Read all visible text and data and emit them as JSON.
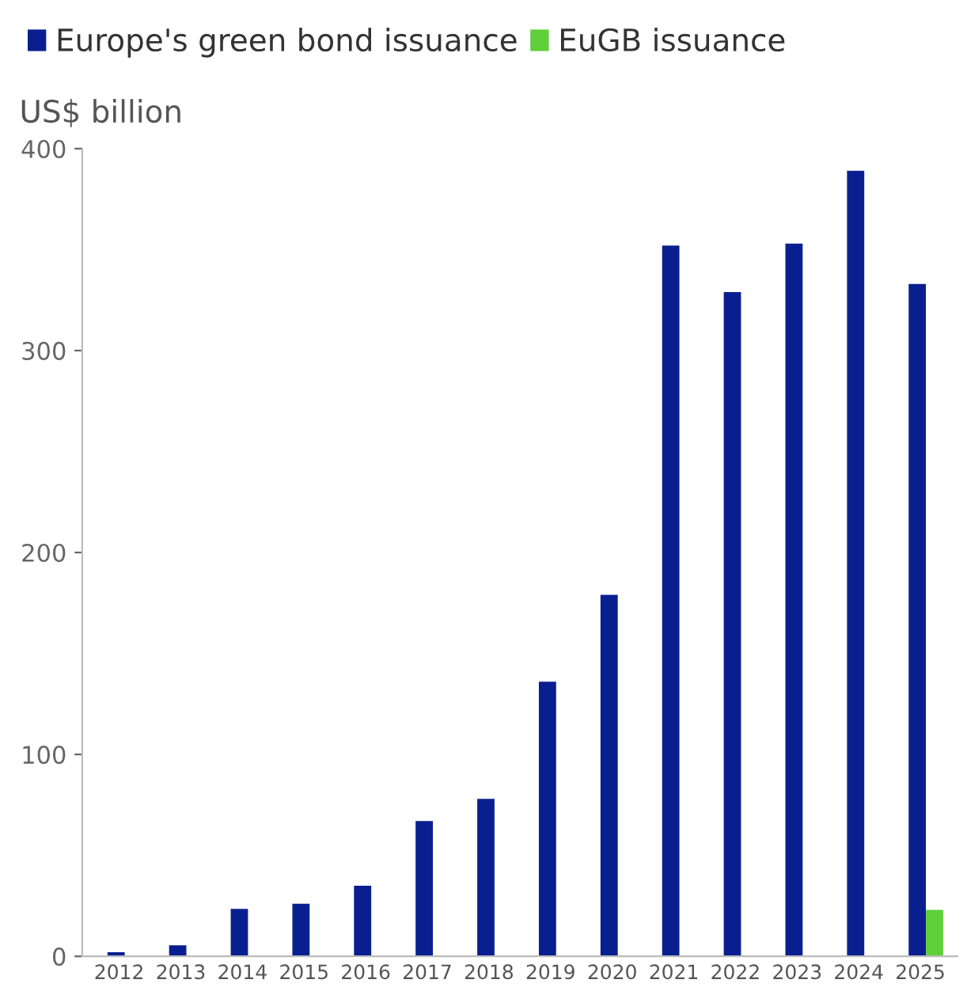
{
  "chart_data": {
    "type": "bar",
    "ylabel": "US$ billion",
    "categories": [
      "2012",
      "2013",
      "2014",
      "2015",
      "2016",
      "2017",
      "2018",
      "2019",
      "2020",
      "2021",
      "2022",
      "2023",
      "2024",
      "2025"
    ],
    "series": [
      {
        "name": "Europe's green bond issuance",
        "color": "#0a1f8f",
        "values": [
          2,
          5.5,
          23.5,
          26,
          35,
          67,
          78,
          136,
          179,
          352,
          329,
          353,
          389,
          333
        ]
      },
      {
        "name": "EuGB issuance",
        "color": "#5fcf3a",
        "values": [
          null,
          null,
          null,
          null,
          null,
          null,
          null,
          null,
          null,
          null,
          null,
          null,
          null,
          23
        ]
      }
    ],
    "ylim": [
      0,
      400
    ],
    "yticks": [
      0,
      100,
      200,
      300,
      400
    ],
    "grid": false,
    "legend": "top left"
  }
}
